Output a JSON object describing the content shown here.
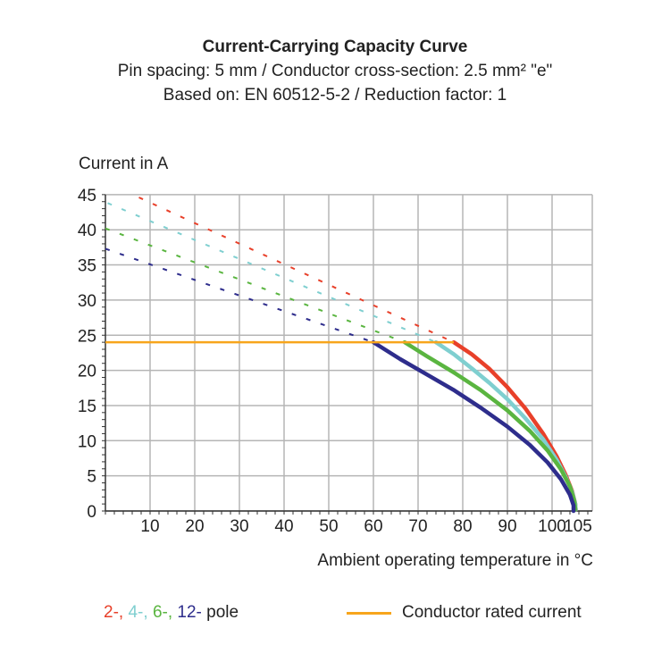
{
  "chart_data": {
    "type": "line",
    "title": "Current-Carrying Capacity Curve",
    "subtitle_lines": [
      "Pin spacing: 5 mm / Conductor cross-section: 2.5 mm² \"e\"",
      "Based on: EN 60512-5-2 / Reduction factor: 1"
    ],
    "xlabel": "Ambient operating temperature in °C",
    "ylabel": "Current in A",
    "xlim": [
      0,
      109
    ],
    "ylim": [
      0,
      45
    ],
    "x_ticks": [
      10,
      20,
      30,
      40,
      50,
      60,
      70,
      80,
      90,
      100,
      105
    ],
    "y_ticks": [
      0,
      5,
      10,
      15,
      20,
      25,
      30,
      35,
      40,
      45
    ],
    "grid": true,
    "legend": {
      "poles": [
        {
          "label": "2-,",
          "color": "#e8402a"
        },
        {
          "label": "4-,",
          "color": "#7fcfd0"
        },
        {
          "label": "6-,",
          "color": "#5ab540"
        },
        {
          "label": "12-",
          "color": "#2e2d8c"
        }
      ],
      "poles_suffix": "pole",
      "rated_label": "Conductor rated current",
      "rated_color": "#f7a51c",
      "placement": "bottom"
    },
    "rated_current": {
      "value": 24,
      "x_range": [
        0,
        78
      ]
    },
    "series": [
      {
        "color": "#e8402a",
        "dashed": [
          [
            7.5,
            44.6
          ],
          [
            78,
            24
          ]
        ],
        "solid": [
          [
            78,
            24
          ],
          [
            82,
            22.3
          ],
          [
            86,
            20.2
          ],
          [
            90,
            17.6
          ],
          [
            94,
            14.6
          ],
          [
            98,
            11.0
          ],
          [
            101,
            7.8
          ],
          [
            103,
            5.2
          ],
          [
            104.5,
            2.8
          ],
          [
            105.2,
            1.0
          ],
          [
            105.3,
            0.2
          ]
        ]
      },
      {
        "color": "#7fcfd0",
        "dashed": [
          [
            0.5,
            43.8
          ],
          [
            74,
            24
          ]
        ],
        "solid": [
          [
            74,
            24
          ],
          [
            78,
            22.3
          ],
          [
            82,
            20.3
          ],
          [
            86,
            18.2
          ],
          [
            90,
            15.9
          ],
          [
            94,
            13.2
          ],
          [
            98,
            10.2
          ],
          [
            101,
            7.3
          ],
          [
            103,
            4.9
          ],
          [
            104.5,
            2.7
          ],
          [
            105.2,
            1.0
          ],
          [
            105.3,
            0.2
          ]
        ]
      },
      {
        "color": "#5ab540",
        "dashed": [
          [
            0,
            40.2
          ],
          [
            67,
            24
          ]
        ],
        "solid": [
          [
            67,
            24
          ],
          [
            72,
            22.0
          ],
          [
            78,
            19.7
          ],
          [
            84,
            17.2
          ],
          [
            90,
            14.3
          ],
          [
            95,
            11.4
          ],
          [
            99,
            8.6
          ],
          [
            102,
            5.9
          ],
          [
            104,
            3.5
          ],
          [
            105,
            1.4
          ],
          [
            105.2,
            0.2
          ]
        ]
      },
      {
        "color": "#2e2d8c",
        "dashed": [
          [
            0,
            37.3
          ],
          [
            60,
            24
          ]
        ],
        "solid": [
          [
            60,
            24
          ],
          [
            66,
            21.6
          ],
          [
            72,
            19.4
          ],
          [
            78,
            17.2
          ],
          [
            84,
            14.7
          ],
          [
            90,
            12.0
          ],
          [
            95,
            9.4
          ],
          [
            99,
            6.9
          ],
          [
            102,
            4.5
          ],
          [
            104,
            2.3
          ],
          [
            104.8,
            0.8
          ],
          [
            104.8,
            0
          ]
        ]
      }
    ]
  }
}
